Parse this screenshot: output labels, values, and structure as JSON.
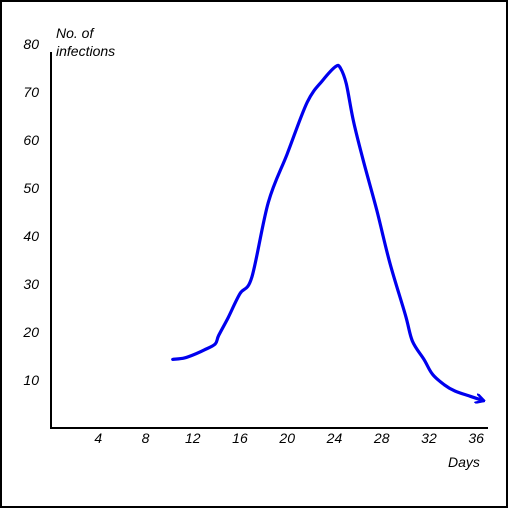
{
  "chart_data": {
    "type": "line",
    "ylabel": [
      "No. of",
      "infections"
    ],
    "xlabel": "Days",
    "xlim": [
      0,
      37
    ],
    "ylim": [
      0,
      80
    ],
    "x_ticks": [
      4,
      8,
      12,
      16,
      20,
      24,
      28,
      32,
      36
    ],
    "x_tick_labels": [
      "4",
      "8",
      "12",
      "16",
      "20",
      "24",
      "28",
      "32",
      "36"
    ],
    "y_ticks": [
      10,
      20,
      30,
      40,
      50,
      60,
      70,
      80
    ],
    "y_tick_labels": [
      "10",
      "20",
      "30",
      "40",
      "50",
      "60",
      "70",
      "80"
    ],
    "grid": false,
    "legend": "none",
    "series": [
      {
        "color": "#0000ee",
        "x": [
          10.3,
          11.3,
          12.3,
          13,
          13.9,
          14.2,
          15,
          16,
          17,
          18.4,
          20,
          21.7,
          23,
          24.1,
          24.5,
          25,
          25.6,
          26.4,
          27.6,
          28.7,
          30,
          30.6,
          31.6,
          32.3,
          33.3,
          34.2,
          35.5,
          36.6
        ],
        "y": [
          14.3,
          14.6,
          15.5,
          16.3,
          17.5,
          19.3,
          23,
          28,
          31.4,
          47,
          57.1,
          67.9,
          72.4,
          75.3,
          75,
          71.7,
          64,
          56.1,
          45.2,
          34.3,
          23.6,
          18.1,
          14.2,
          11.2,
          9.0,
          7.7,
          6.6,
          5.7
        ],
        "arrow_end": true
      }
    ]
  }
}
